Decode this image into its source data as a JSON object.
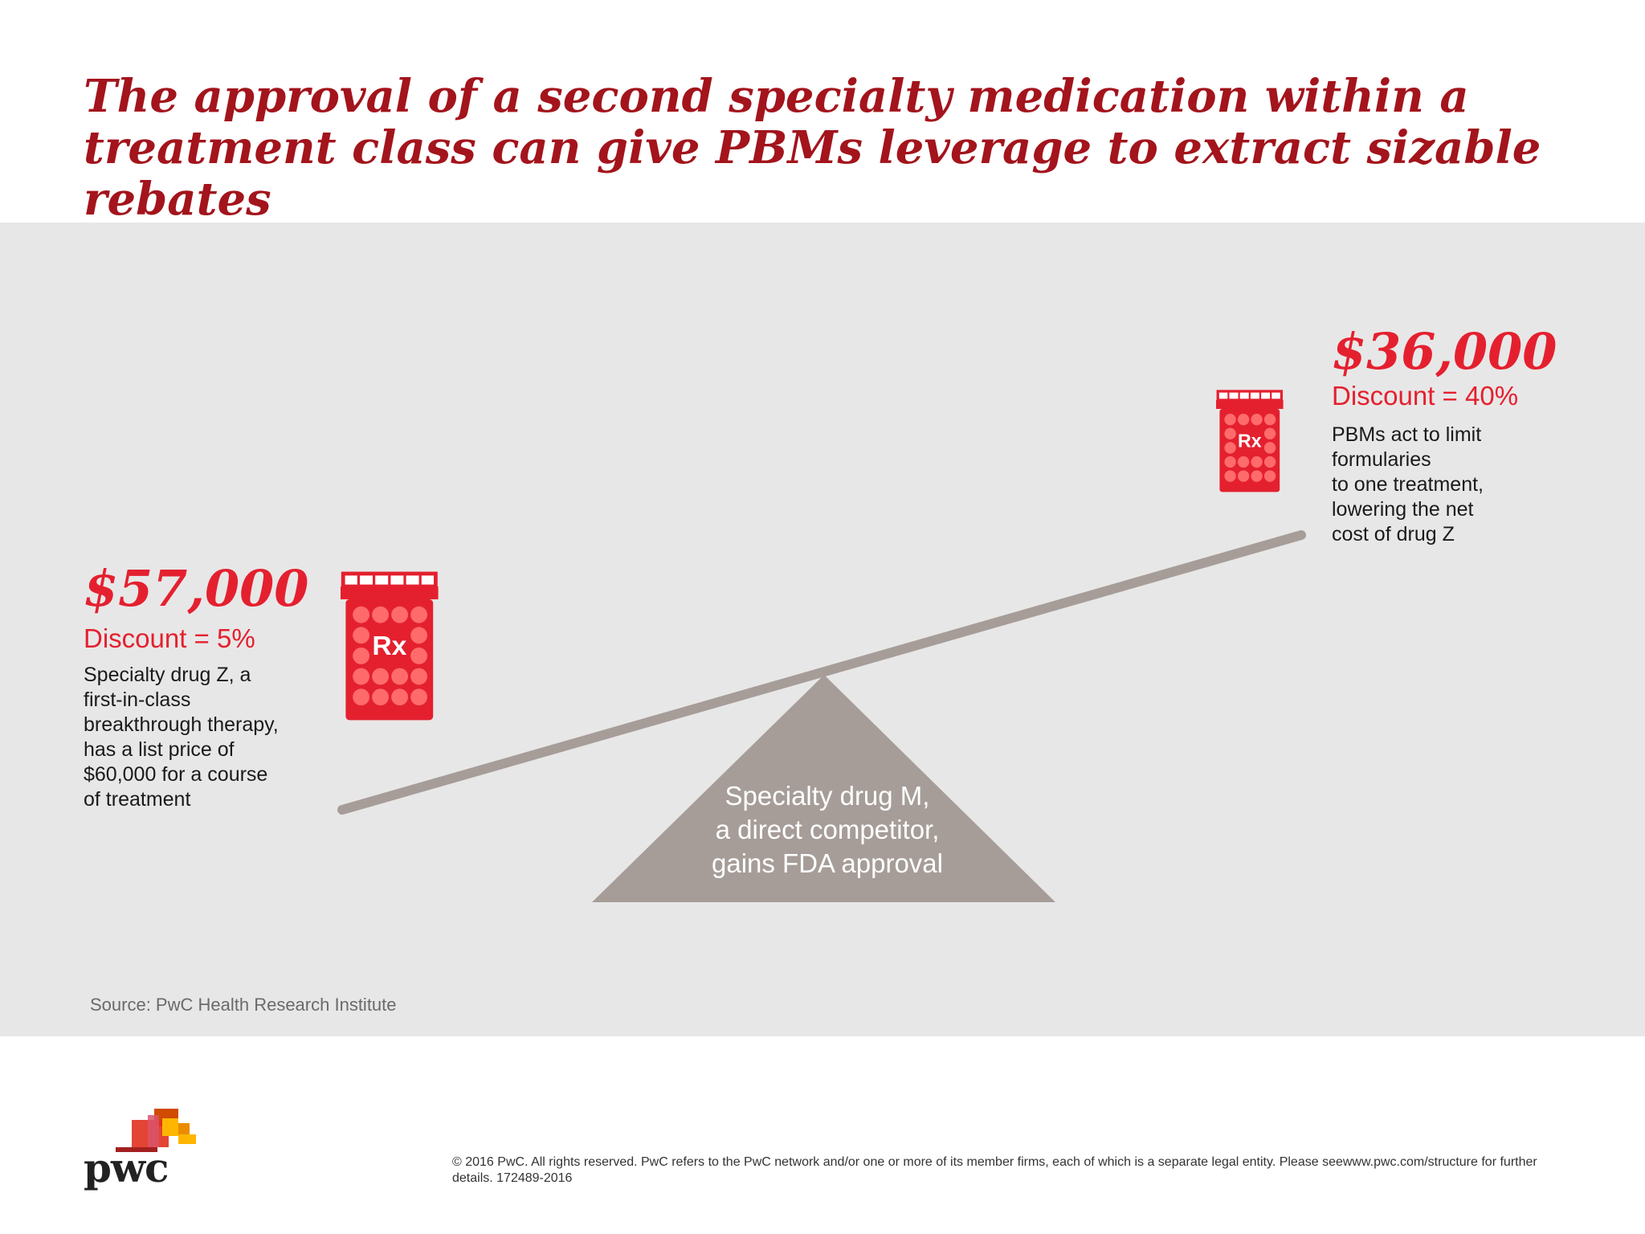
{
  "title": "The approval of a second specialty medication within a treatment class can give PBMs leverage to extract sizable rebates",
  "left_drug": {
    "price": "$57,000",
    "discount": "Discount = 5%",
    "description": "Specialty drug Z, a\nfirst-in-class\nbreakthrough therapy,\nhas a list price of\n$60,000 for a course\nof treatment",
    "icon_label": "Rx"
  },
  "right_drug": {
    "price": "$36,000",
    "discount": "Discount = 40%",
    "description": "PBMs act to limit\nformularies\nto one treatment,\nlowering the net\ncost of drug Z",
    "icon_label": "Rx"
  },
  "fulcrum": {
    "label": "Specialty drug M,\na direct competitor,\ngains FDA approval"
  },
  "source": "Source: PwC Health Research Institute",
  "footer": {
    "logo_text": "pwc",
    "copyright": "© 2016 PwC. All rights reserved. PwC refers to the PwC network and/or one or more of its member firms, each of which is a separate legal entity. Please seewww.pwc.com/structure for further details. 172489-2016"
  },
  "colors": {
    "accent_red": "#e4202f",
    "title_red": "#a3141c",
    "beam_gray": "#a69d99",
    "fulcrum_gray": "#a69d99",
    "panel_gray": "#e8e7e7"
  },
  "icons": {
    "pill_bottle": "rx-pill-bottle-icon",
    "logo_squares": "pwc-logo-squares"
  }
}
